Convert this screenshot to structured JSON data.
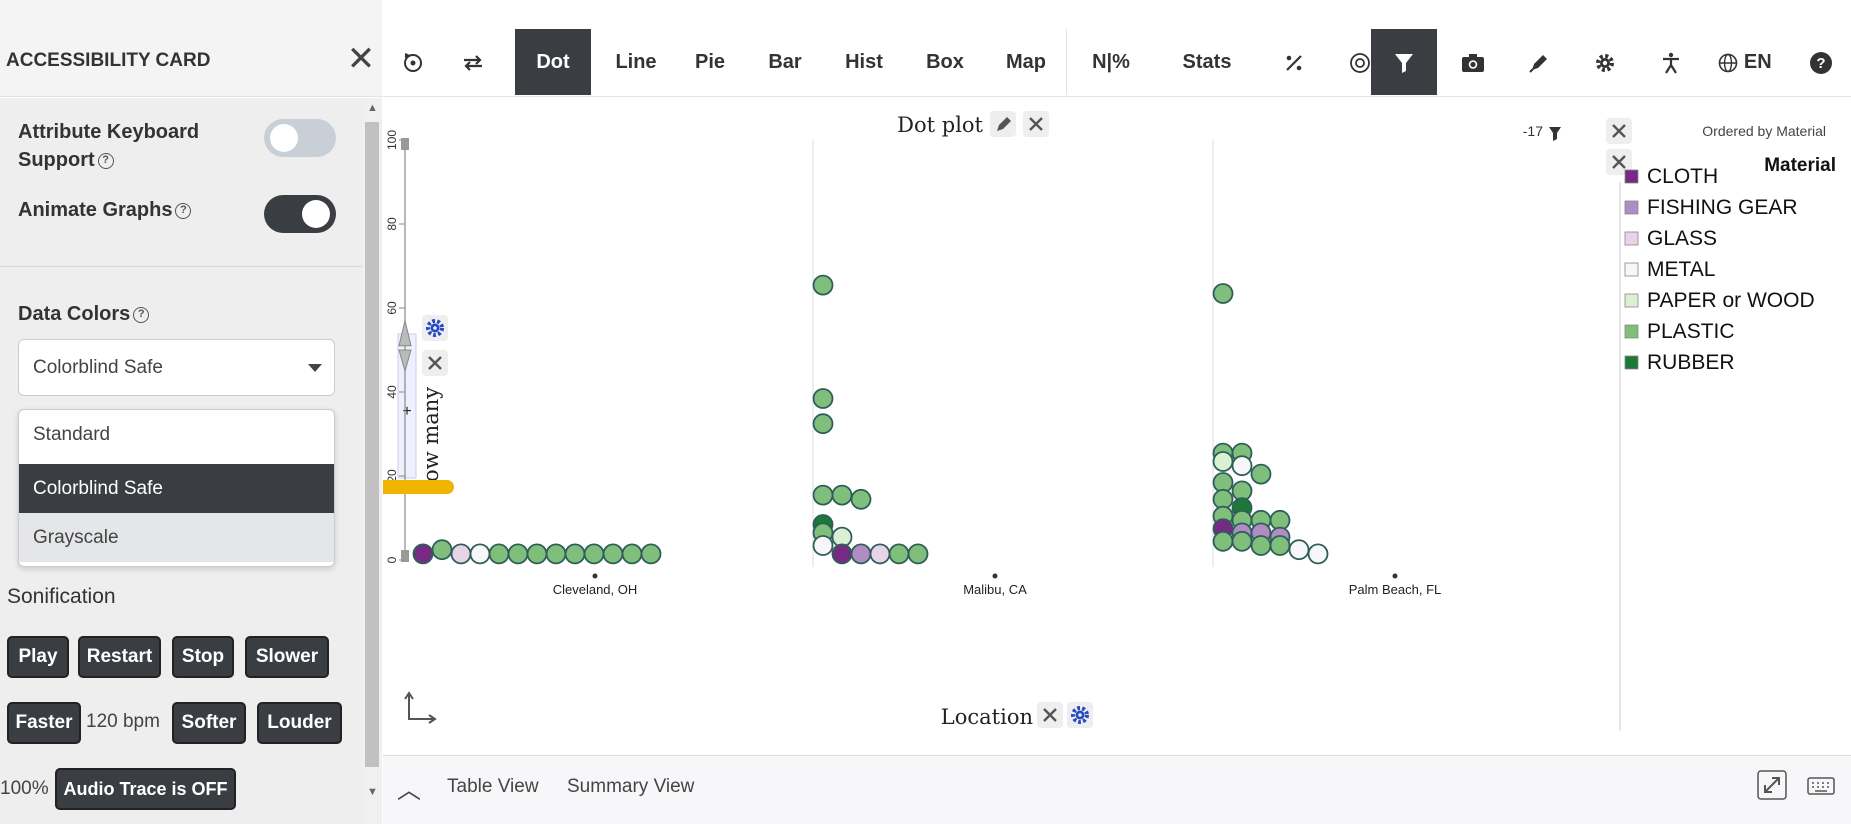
{
  "sidebar": {
    "title": "ACCESSIBILITY CARD",
    "close_glyph": "✕",
    "keyboard_label_1": "Attribute Keyboard",
    "keyboard_label_2": "Support",
    "animate_label": "Animate Graphs",
    "help_glyph": "?",
    "keyboard_support": false,
    "animate_graphs": true,
    "data_colors_label": "Data Colors",
    "data_colors_value": "Colorblind Safe",
    "data_colors_options": [
      "Standard",
      "Colorblind Safe",
      "Grayscale"
    ],
    "sonification_label": "Sonification",
    "buttons_row1": [
      "Play",
      "Restart",
      "Stop",
      "Slower"
    ],
    "faster": "Faster",
    "bpm": "120 bpm",
    "softer": "Softer",
    "louder": "Louder",
    "volume": "100%",
    "audio_trace": "Audio Trace is OFF"
  },
  "toolbar": {
    "tabs": [
      "Dot",
      "Line",
      "Pie",
      "Bar",
      "Hist",
      "Box",
      "Map",
      "N|%",
      "Stats"
    ],
    "active_tab": "Dot",
    "language": "EN",
    "icons": [
      "reset-icon",
      "swap-axes-icon",
      "percent-icon",
      "target-icon",
      "filter-icon",
      "camera-icon",
      "pen-icon",
      "gear-icon",
      "accessibility-icon",
      "globe-icon",
      "help-icon"
    ]
  },
  "graph": {
    "title": "Dot plot",
    "filter_count": "-17",
    "ordered_by": "Ordered by Material",
    "y_label": "How many",
    "y_label_visible": "ow many",
    "plus": "+",
    "x_label": "Location",
    "legend_title": "Material"
  },
  "chart_data": {
    "type": "scatter",
    "title": "Dot plot",
    "xlabel": "Location",
    "ylabel": "How many",
    "categories": [
      "Cleveland, OH",
      "Malibu, CA",
      "Palm Beach, FL"
    ],
    "ylim": [
      0,
      100
    ],
    "yticks": [
      0,
      20,
      40,
      60,
      80,
      100
    ],
    "legend": [
      {
        "name": "CLOTH",
        "color": "#762a83"
      },
      {
        "name": "FISHING GEAR",
        "color": "#af8dc3"
      },
      {
        "name": "GLASS",
        "color": "#e7d4e8"
      },
      {
        "name": "METAL",
        "color": "#f7f7f7"
      },
      {
        "name": "PAPER or WOOD",
        "color": "#d9f0d3"
      },
      {
        "name": "PLASTIC",
        "color": "#7fbf7b"
      },
      {
        "name": "RUBBER",
        "color": "#1b7837"
      }
    ],
    "points": [
      {
        "location": "Cleveland, OH",
        "material": "CLOTH",
        "value": 1
      },
      {
        "location": "Cleveland, OH",
        "material": "PLASTIC",
        "value": 2
      },
      {
        "location": "Cleveland, OH",
        "material": "GLASS",
        "value": 1
      },
      {
        "location": "Cleveland, OH",
        "material": "METAL",
        "value": 1
      },
      {
        "location": "Cleveland, OH",
        "material": "PLASTIC",
        "value": 1
      },
      {
        "location": "Cleveland, OH",
        "material": "PLASTIC",
        "value": 1
      },
      {
        "location": "Cleveland, OH",
        "material": "PLASTIC",
        "value": 1
      },
      {
        "location": "Cleveland, OH",
        "material": "PLASTIC",
        "value": 1
      },
      {
        "location": "Cleveland, OH",
        "material": "PLASTIC",
        "value": 1
      },
      {
        "location": "Cleveland, OH",
        "material": "PLASTIC",
        "value": 1
      },
      {
        "location": "Cleveland, OH",
        "material": "PLASTIC",
        "value": 1
      },
      {
        "location": "Cleveland, OH",
        "material": "PLASTIC",
        "value": 1
      },
      {
        "location": "Cleveland, OH",
        "material": "PLASTIC",
        "value": 1
      },
      {
        "location": "Malibu, CA",
        "material": "PLASTIC",
        "value": 65
      },
      {
        "location": "Malibu, CA",
        "material": "PLASTIC",
        "value": 38
      },
      {
        "location": "Malibu, CA",
        "material": "PLASTIC",
        "value": 32
      },
      {
        "location": "Malibu, CA",
        "material": "PLASTIC",
        "value": 15
      },
      {
        "location": "Malibu, CA",
        "material": "PLASTIC",
        "value": 15
      },
      {
        "location": "Malibu, CA",
        "material": "PLASTIC",
        "value": 14
      },
      {
        "location": "Malibu, CA",
        "material": "RUBBER",
        "value": 8
      },
      {
        "location": "Malibu, CA",
        "material": "PLASTIC",
        "value": 6
      },
      {
        "location": "Malibu, CA",
        "material": "PAPER or WOOD",
        "value": 5
      },
      {
        "location": "Malibu, CA",
        "material": "METAL",
        "value": 3
      },
      {
        "location": "Malibu, CA",
        "material": "CLOTH",
        "value": 1
      },
      {
        "location": "Malibu, CA",
        "material": "FISHING GEAR",
        "value": 1
      },
      {
        "location": "Malibu, CA",
        "material": "GLASS",
        "value": 1
      },
      {
        "location": "Malibu, CA",
        "material": "PLASTIC",
        "value": 1
      },
      {
        "location": "Malibu, CA",
        "material": "PLASTIC",
        "value": 1
      },
      {
        "location": "Palm Beach, FL",
        "material": "PLASTIC",
        "value": 63
      },
      {
        "location": "Palm Beach, FL",
        "material": "PLASTIC",
        "value": 25
      },
      {
        "location": "Palm Beach, FL",
        "material": "PLASTIC",
        "value": 25
      },
      {
        "location": "Palm Beach, FL",
        "material": "PAPER or WOOD",
        "value": 23
      },
      {
        "location": "Palm Beach, FL",
        "material": "METAL",
        "value": 22
      },
      {
        "location": "Palm Beach, FL",
        "material": "PLASTIC",
        "value": 20
      },
      {
        "location": "Palm Beach, FL",
        "material": "PLASTIC",
        "value": 18
      },
      {
        "location": "Palm Beach, FL",
        "material": "PLASTIC",
        "value": 16
      },
      {
        "location": "Palm Beach, FL",
        "material": "PLASTIC",
        "value": 14
      },
      {
        "location": "Palm Beach, FL",
        "material": "RUBBER",
        "value": 12
      },
      {
        "location": "Palm Beach, FL",
        "material": "PLASTIC",
        "value": 10
      },
      {
        "location": "Palm Beach, FL",
        "material": "PLASTIC",
        "value": 9
      },
      {
        "location": "Palm Beach, FL",
        "material": "PLASTIC",
        "value": 9
      },
      {
        "location": "Palm Beach, FL",
        "material": "PLASTIC",
        "value": 9
      },
      {
        "location": "Palm Beach, FL",
        "material": "CLOTH",
        "value": 7
      },
      {
        "location": "Palm Beach, FL",
        "material": "FISHING GEAR",
        "value": 6
      },
      {
        "location": "Palm Beach, FL",
        "material": "FISHING GEAR",
        "value": 6
      },
      {
        "location": "Palm Beach, FL",
        "material": "FISHING GEAR",
        "value": 5
      },
      {
        "location": "Palm Beach, FL",
        "material": "PLASTIC",
        "value": 4
      },
      {
        "location": "Palm Beach, FL",
        "material": "PLASTIC",
        "value": 4
      },
      {
        "location": "Palm Beach, FL",
        "material": "PLASTIC",
        "value": 3
      },
      {
        "location": "Palm Beach, FL",
        "material": "PLASTIC",
        "value": 3
      },
      {
        "location": "Palm Beach, FL",
        "material": "METAL",
        "value": 2
      },
      {
        "location": "Palm Beach, FL",
        "material": "METAL",
        "value": 1
      }
    ]
  },
  "footer": {
    "table_view": "Table View",
    "summary_view": "Summary View"
  },
  "annotation_color": "#f0b400"
}
